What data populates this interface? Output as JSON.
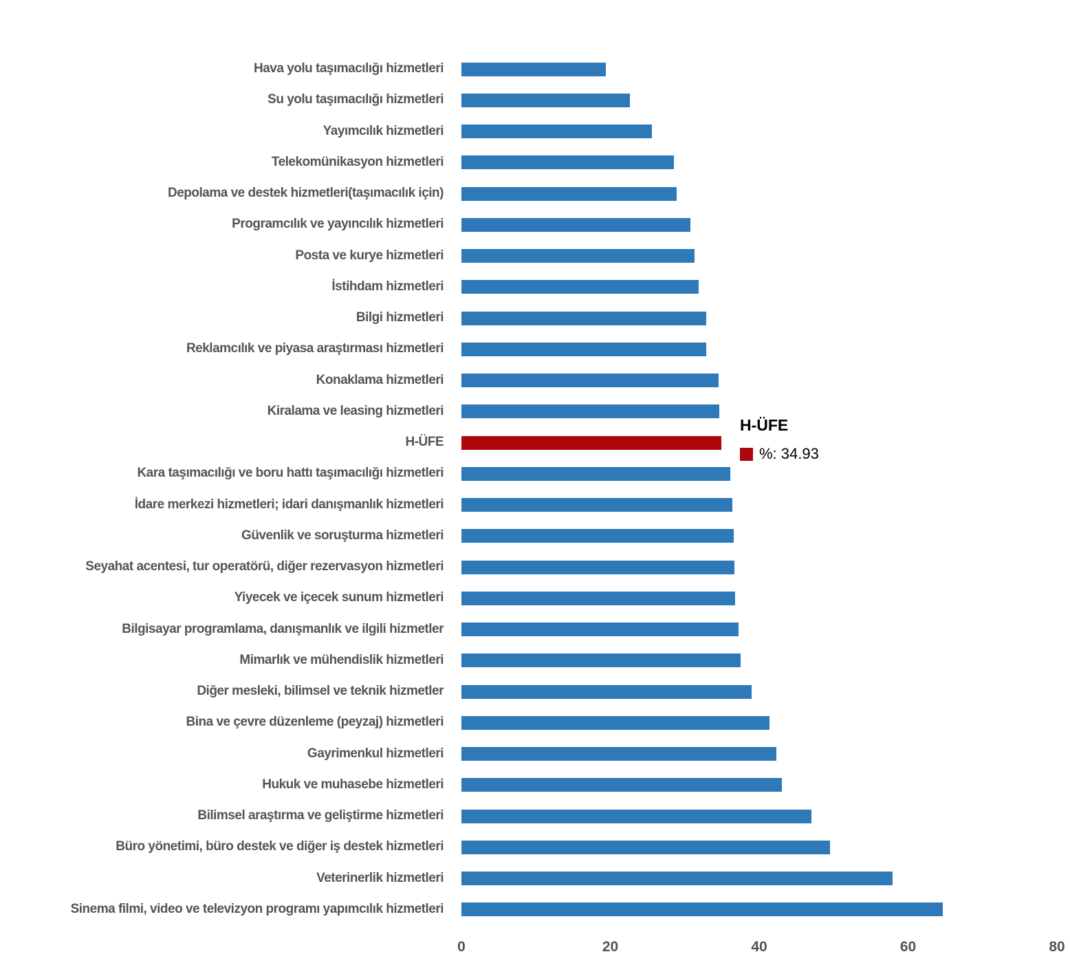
{
  "chart_data": {
    "type": "bar",
    "orientation": "horizontal",
    "title": "",
    "xlabel": "",
    "ylabel": "",
    "grid": false,
    "xlim": [
      0,
      80
    ],
    "xticks": [
      0,
      20,
      40,
      60,
      80
    ],
    "highlight_category": "H-ÜFE",
    "categories": [
      "Hava yolu taşımacılığı hizmetleri",
      "Su yolu taşımacılığı hizmetleri",
      "Yayımcılık hizmetleri",
      "Telekomünikasyon hizmetleri",
      "Depolama ve destek hizmetleri(taşımacılık için)",
      "Programcılık ve yayıncılık hizmetleri",
      "Posta ve kurye hizmetleri",
      "İstihdam hizmetleri",
      "Bilgi hizmetleri",
      "Reklamcılık ve piyasa araştırması hizmetleri",
      "Konaklama hizmetleri",
      "Kiralama ve leasing hizmetleri",
      "H-ÜFE",
      "Kara taşımacılığı ve boru hattı taşımacılığı hizmetleri",
      "İdare merkezi hizmetleri; idari danışmanlık hizmetleri",
      "Güvenlik ve soruşturma hizmetleri",
      "Seyahat acentesi, tur operatörü, diğer rezervasyon hizmetleri",
      "Yiyecek ve içecek sunum hizmetleri",
      "Bilgisayar programlama, danışmanlık ve ilgili hizmetler",
      "Mimarlık ve mühendislik hizmetleri",
      "Diğer mesleki, bilimsel ve teknik hizmetler",
      "Bina ve çevre düzenleme (peyzaj) hizmetleri",
      "Gayrimenkul hizmetleri",
      "Hukuk ve muhasebe hizmetleri",
      "Bilimsel araştırma ve geliştirme hizmetleri",
      "Büro yönetimi, büro destek ve diğer iş destek hizmetleri",
      "Veterinerlik hizmetleri",
      "Sinema filmi, video ve televizyon programı yapımcılık hizmetleri"
    ],
    "values": [
      19.4,
      22.6,
      25.6,
      28.5,
      28.9,
      30.8,
      31.3,
      31.9,
      32.9,
      32.9,
      34.5,
      34.6,
      34.93,
      36.1,
      36.4,
      36.6,
      36.7,
      36.8,
      37.2,
      37.5,
      39.0,
      41.4,
      42.3,
      43.0,
      47.0,
      49.5,
      57.9,
      64.7
    ],
    "legend": {
      "position": "right-middle",
      "title": "H-ÜFE",
      "value_label": "%: 34.93"
    },
    "colors": {
      "bar": "#2E79B7",
      "highlight": "#AF060B",
      "label_text": "#545454",
      "tick_text": "#545454",
      "legend_text": "#000000",
      "background": "#FFFFFF"
    }
  }
}
